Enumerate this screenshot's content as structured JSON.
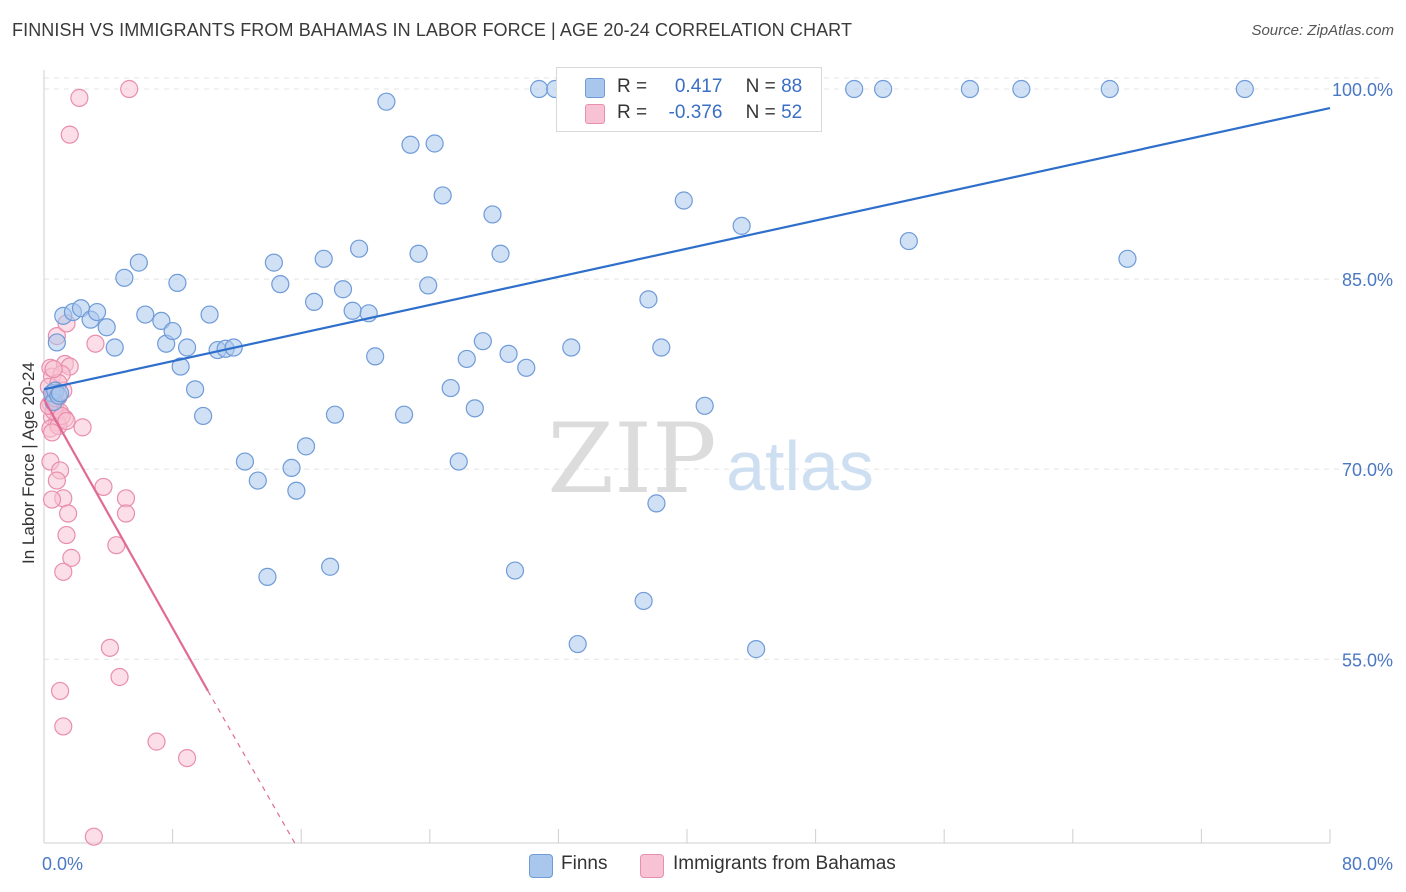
{
  "title": "FINNISH VS IMMIGRANTS FROM BAHAMAS IN LABOR FORCE | AGE 20-24 CORRELATION CHART",
  "source": "Source: ZipAtlas.com",
  "watermark": {
    "zip": "ZIP",
    "atlas": "atlas"
  },
  "legend": {
    "finns": {
      "r_label": "R =",
      "r_value": "0.417",
      "n_label": "N =",
      "n_value": "88"
    },
    "bahamas": {
      "r_label": "R =",
      "r_value": "-0.376",
      "n_label": "N =",
      "n_value": "52"
    }
  },
  "bottom_legend": {
    "finns": "Finns",
    "bahamas": "Immigrants from Bahamas"
  },
  "colors": {
    "finns_fill": "#a9c6ec",
    "finns_stroke": "#6f9bd8",
    "finns_line": "#2f6fcc",
    "bahamas_fill": "#f7c3d4",
    "bahamas_stroke": "#e98eac",
    "bahamas_line": "#e06a95",
    "grid": "#e4e4e4",
    "axis_text": "#4a78c2"
  },
  "chart_data": {
    "type": "scatter",
    "title": "FINNISH VS IMMIGRANTS FROM BAHAMAS IN LABOR FORCE | AGE 20-24 CORRELATION CHART",
    "xlabel": "",
    "ylabel": "In Labor Force | Age 20-24",
    "xlim": [
      0,
      80
    ],
    "ylim": [
      40.5,
      101.5
    ],
    "x_tick_labels": [
      "0.0%",
      "80.0%"
    ],
    "y_ticks": [
      55,
      70,
      85,
      100
    ],
    "y_tick_labels": [
      "55.0%",
      "70.0%",
      "85.0%",
      "100.0%"
    ],
    "grid": true,
    "legend_position": "top-center",
    "series": [
      {
        "name": "Finns",
        "trend": {
          "x": [
            0,
            80
          ],
          "y": [
            76.3,
            98.5
          ]
        },
        "points": [
          [
            0.5,
            76.0
          ],
          [
            0.8,
            80.0
          ],
          [
            1.2,
            82.1
          ],
          [
            1.8,
            82.4
          ],
          [
            2.3,
            82.7
          ],
          [
            2.9,
            81.8
          ],
          [
            3.3,
            82.4
          ],
          [
            3.9,
            81.2
          ],
          [
            4.4,
            79.6
          ],
          [
            5.0,
            85.1
          ],
          [
            5.9,
            86.3
          ],
          [
            6.3,
            82.2
          ],
          [
            7.3,
            81.7
          ],
          [
            7.6,
            79.9
          ],
          [
            8.0,
            80.9
          ],
          [
            8.3,
            84.7
          ],
          [
            8.5,
            78.1
          ],
          [
            8.9,
            79.6
          ],
          [
            9.4,
            76.3
          ],
          [
            9.9,
            74.2
          ],
          [
            10.3,
            82.2
          ],
          [
            10.8,
            79.4
          ],
          [
            11.3,
            79.5
          ],
          [
            11.8,
            79.6
          ],
          [
            12.5,
            70.6
          ],
          [
            13.3,
            69.1
          ],
          [
            13.9,
            61.5
          ],
          [
            14.3,
            86.3
          ],
          [
            14.7,
            84.6
          ],
          [
            15.4,
            70.1
          ],
          [
            15.7,
            68.3
          ],
          [
            16.3,
            71.8
          ],
          [
            16.8,
            83.2
          ],
          [
            17.4,
            86.6
          ],
          [
            17.8,
            62.3
          ],
          [
            18.1,
            74.3
          ],
          [
            18.6,
            84.2
          ],
          [
            19.2,
            82.5
          ],
          [
            19.6,
            87.4
          ],
          [
            20.2,
            82.3
          ],
          [
            20.6,
            78.9
          ],
          [
            21.3,
            99.0
          ],
          [
            22.4,
            74.3
          ],
          [
            22.8,
            95.6
          ],
          [
            23.3,
            87.0
          ],
          [
            23.9,
            84.5
          ],
          [
            24.3,
            95.7
          ],
          [
            24.8,
            91.6
          ],
          [
            25.3,
            76.4
          ],
          [
            25.8,
            70.6
          ],
          [
            26.3,
            78.7
          ],
          [
            26.8,
            74.8
          ],
          [
            27.3,
            80.1
          ],
          [
            27.9,
            90.1
          ],
          [
            28.4,
            87.0
          ],
          [
            28.9,
            79.1
          ],
          [
            29.3,
            62.0
          ],
          [
            30.0,
            78.0
          ],
          [
            30.8,
            100.0
          ],
          [
            31.8,
            100.0
          ],
          [
            32.8,
            79.6
          ],
          [
            33.2,
            56.2
          ],
          [
            34.3,
            100.0
          ],
          [
            35.3,
            100.0
          ],
          [
            36.3,
            100.0
          ],
          [
            37.3,
            59.6
          ],
          [
            37.6,
            83.4
          ],
          [
            38.1,
            67.3
          ],
          [
            38.4,
            79.6
          ],
          [
            39.0,
            100.0
          ],
          [
            39.8,
            91.2
          ],
          [
            41.1,
            75.0
          ],
          [
            42.8,
            100.0
          ],
          [
            43.4,
            89.2
          ],
          [
            44.3,
            55.8
          ],
          [
            45.5,
            100.0
          ],
          [
            50.4,
            100.0
          ],
          [
            52.2,
            100.0
          ],
          [
            53.8,
            88.0
          ],
          [
            57.6,
            100.0
          ],
          [
            60.8,
            100.0
          ],
          [
            66.3,
            100.0
          ],
          [
            67.4,
            86.6
          ],
          [
            74.7,
            100.0
          ],
          [
            0.6,
            75.3
          ],
          [
            0.7,
            76.2
          ],
          [
            0.9,
            75.8
          ],
          [
            1.0,
            76.0
          ]
        ]
      },
      {
        "name": "Immigrants from Bahamas",
        "trend": {
          "x": [
            0,
            10.2
          ],
          "y": [
            75.5,
            52.5
          ]
        },
        "trend_dashed": {
          "x": [
            10.2,
            15.6
          ],
          "y": [
            52.5,
            40.5
          ]
        },
        "points": [
          [
            5.3,
            100.0
          ],
          [
            2.2,
            99.3
          ],
          [
            1.6,
            96.4
          ],
          [
            0.8,
            80.5
          ],
          [
            1.4,
            81.5
          ],
          [
            0.4,
            78.0
          ],
          [
            1.3,
            78.3
          ],
          [
            1.6,
            78.1
          ],
          [
            0.5,
            77.3
          ],
          [
            1.1,
            77.5
          ],
          [
            0.3,
            76.5
          ],
          [
            0.6,
            76.0
          ],
          [
            0.9,
            75.7
          ],
          [
            0.4,
            75.2
          ],
          [
            0.7,
            74.8
          ],
          [
            1.0,
            74.5
          ],
          [
            1.3,
            74.0
          ],
          [
            0.5,
            74.1
          ],
          [
            0.8,
            73.7
          ],
          [
            0.4,
            73.2
          ],
          [
            0.9,
            73.4
          ],
          [
            2.4,
            73.3
          ],
          [
            3.2,
            79.9
          ],
          [
            0.4,
            70.6
          ],
          [
            1.0,
            69.9
          ],
          [
            0.8,
            69.1
          ],
          [
            3.7,
            68.6
          ],
          [
            5.1,
            67.7
          ],
          [
            1.2,
            67.7
          ],
          [
            0.5,
            67.6
          ],
          [
            1.5,
            66.5
          ],
          [
            5.1,
            66.5
          ],
          [
            1.4,
            64.8
          ],
          [
            4.5,
            64.0
          ],
          [
            1.7,
            63.0
          ],
          [
            1.2,
            61.9
          ],
          [
            4.1,
            55.9
          ],
          [
            4.7,
            53.6
          ],
          [
            1.0,
            52.5
          ],
          [
            1.2,
            49.7
          ],
          [
            7.0,
            48.5
          ],
          [
            8.9,
            47.2
          ],
          [
            3.1,
            41.0
          ],
          [
            0.6,
            74.6
          ],
          [
            1.1,
            74.2
          ],
          [
            0.3,
            75.0
          ],
          [
            0.7,
            75.6
          ],
          [
            1.2,
            76.2
          ],
          [
            0.5,
            72.9
          ],
          [
            0.9,
            76.8
          ],
          [
            1.4,
            73.8
          ],
          [
            0.6,
            77.9
          ]
        ]
      }
    ]
  }
}
